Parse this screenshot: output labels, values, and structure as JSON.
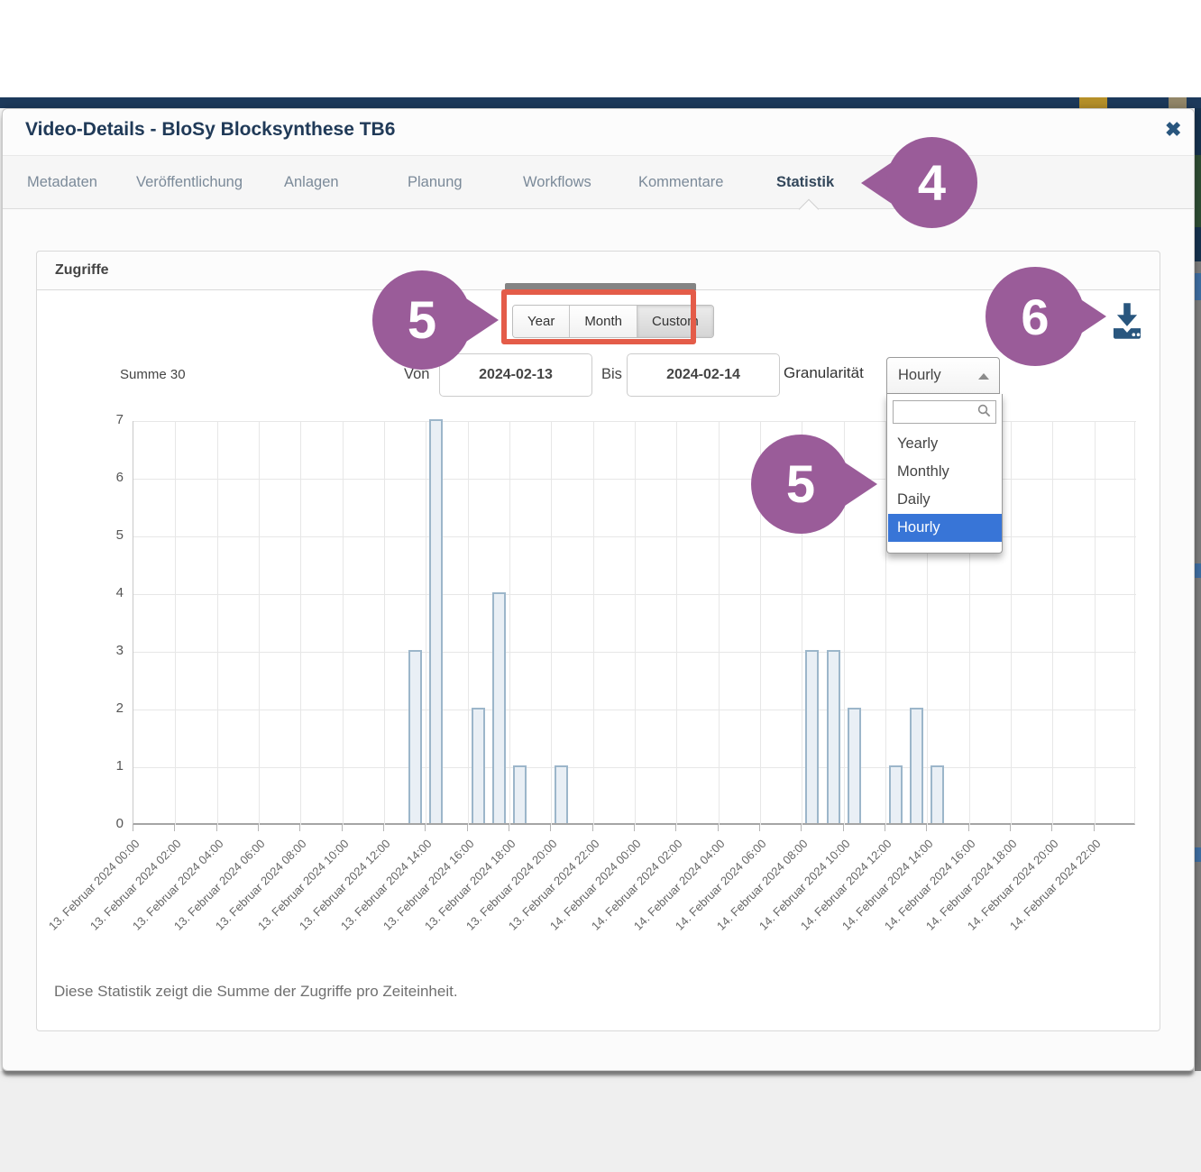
{
  "colors": {
    "accent_purple": "#9a5c99",
    "annotation_red": "#e45c49",
    "bar_fill": "#e9eff5",
    "bar_border": "#9cb6ca",
    "highlight_blue": "#3875d7",
    "icon_navy": "#29567e",
    "title_navy": "#203a58",
    "header_strip_navy": "#1d3a5c"
  },
  "modal": {
    "title": "Video-Details - BloSy Blocksynthese TB6",
    "close_glyph": "✖"
  },
  "tabs": {
    "active": "Statistik",
    "items": [
      {
        "label": "Metadaten"
      },
      {
        "label": "Veröffentlichung"
      },
      {
        "label": "Anlagen"
      },
      {
        "label": "Planung"
      },
      {
        "label": "Workflows"
      },
      {
        "label": "Kommentare"
      },
      {
        "label": "Statistik"
      }
    ]
  },
  "panel": {
    "title": "Zugriffe",
    "footer_note": "Diese Statistik zeigt die Summe der Zugriffe pro Zeiteinheit."
  },
  "toolbar": {
    "range_buttons": [
      "Year",
      "Month",
      "Custom"
    ],
    "active_range": "Custom"
  },
  "summary": {
    "label": "Summe 30"
  },
  "filters": {
    "von_label": "Von",
    "von_value": "2024-02-13",
    "bis_label": "Bis",
    "bis_value": "2024-02-14",
    "granularity_label": "Granularität",
    "granularity_value": "Hourly",
    "search_value": "",
    "options": [
      "Yearly",
      "Monthly",
      "Daily",
      "Hourly"
    ]
  },
  "annotations": [
    {
      "number": "4"
    },
    {
      "number": "5"
    },
    {
      "number": "5"
    },
    {
      "number": "6"
    }
  ],
  "chart_data": {
    "type": "bar",
    "title": "Zugriffe",
    "sum": 30,
    "xlabel": "",
    "ylabel": "",
    "ylim": [
      0,
      7
    ],
    "y_ticks": [
      0,
      1,
      2,
      3,
      4,
      5,
      6,
      7
    ],
    "grid": true,
    "hours_span": 48,
    "x_tick_labels": [
      "13. Februar 2024 00:00",
      "13. Februar 2024 02:00",
      "13. Februar 2024 04:00",
      "13. Februar 2024 06:00",
      "13. Februar 2024 08:00",
      "13. Februar 2024 10:00",
      "13. Februar 2024 12:00",
      "13. Februar 2024 14:00",
      "13. Februar 2024 16:00",
      "13. Februar 2024 18:00",
      "13. Februar 2024 20:00",
      "13. Februar 2024 22:00",
      "14. Februar 2024 00:00",
      "14. Februar 2024 02:00",
      "14. Februar 2024 04:00",
      "14. Februar 2024 06:00",
      "14. Februar 2024 08:00",
      "14. Februar 2024 10:00",
      "14. Februar 2024 12:00",
      "14. Februar 2024 14:00",
      "14. Februar 2024 16:00",
      "14. Februar 2024 18:00",
      "14. Februar 2024 20:00",
      "14. Februar 2024 22:00"
    ],
    "bars": [
      {
        "hour": 13,
        "label": "13. Februar 2024 13:00",
        "value": 3
      },
      {
        "hour": 14,
        "label": "13. Februar 2024 14:00",
        "value": 7
      },
      {
        "hour": 16,
        "label": "13. Februar 2024 16:00",
        "value": 2
      },
      {
        "hour": 17,
        "label": "13. Februar 2024 17:00",
        "value": 4
      },
      {
        "hour": 18,
        "label": "13. Februar 2024 18:00",
        "value": 1
      },
      {
        "hour": 20,
        "label": "13. Februar 2024 20:00",
        "value": 1
      },
      {
        "hour": 32,
        "label": "14. Februar 2024 08:00",
        "value": 3
      },
      {
        "hour": 33,
        "label": "14. Februar 2024 09:00",
        "value": 3
      },
      {
        "hour": 34,
        "label": "14. Februar 2024 10:00",
        "value": 2
      },
      {
        "hour": 36,
        "label": "14. Februar 2024 12:00",
        "value": 1
      },
      {
        "hour": 37,
        "label": "14. Februar 2024 13:00",
        "value": 2
      },
      {
        "hour": 38,
        "label": "14. Februar 2024 14:00",
        "value": 1
      }
    ]
  }
}
